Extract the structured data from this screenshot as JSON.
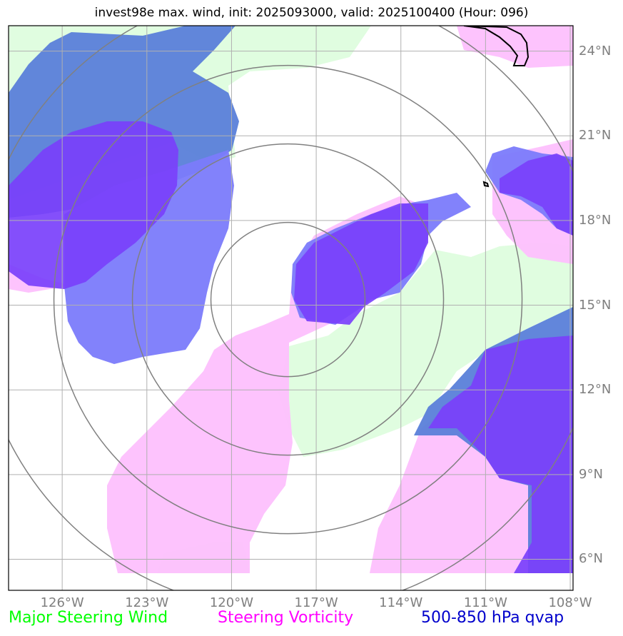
{
  "title": "invest98e max. wind, init: 2025093000, valid: 2025100400 (Hour: 096)",
  "map": {
    "lat_labels": [
      "24°N",
      "21°N",
      "18°N",
      "15°N",
      "12°N",
      "9°N",
      "6°N"
    ],
    "lon_labels": [
      "126°W",
      "123°W",
      "120°W",
      "117°W",
      "114°W",
      "111°W",
      "108°W"
    ],
    "lat_range": [
      4.9,
      24.9
    ],
    "lon_range": [
      -127.9,
      -107.9
    ],
    "range_rings": "concentric circles centered near 15.2°N, 118°W",
    "colors": {
      "steering_wind": "#e0fde0",
      "vorticity": "#fdc0fd",
      "qvap_light": "#7b7bfb",
      "qvap_dark": "#5a80d9",
      "qvap_purple": "#7a40fb",
      "grid": "#b0b0b0",
      "rings": "#808080"
    }
  },
  "legend": {
    "wind": {
      "label": "Major Steering Wind",
      "color": "#00ff00"
    },
    "vorticity": {
      "label": "Steering Vorticity",
      "color": "#ff00ff"
    },
    "qvap": {
      "label": "500-850 hPa qvap",
      "color": "#0000cc"
    }
  }
}
